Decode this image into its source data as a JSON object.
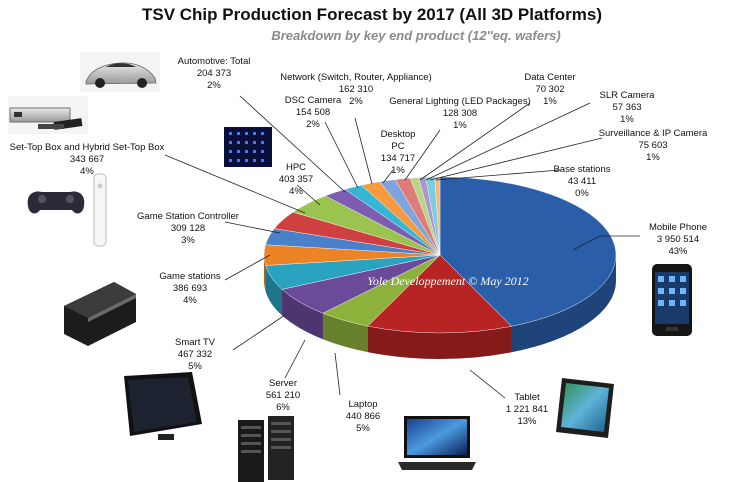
{
  "chart_data": {
    "type": "pie",
    "title": "TSV Chip Production  Forecast  by 2017 (All  3D Platforms)",
    "subtitle": "Breakdown by  key end product (12''eq. wafers)",
    "watermark": "Yole Developpement © May 2012",
    "slices": [
      {
        "name": "Mobile Phone",
        "value": "3 950 514",
        "pct": "43%",
        "v": 3950514,
        "color": "#2a5ea8"
      },
      {
        "name": "Tablet",
        "value": "1 221 841",
        "pct": "13%",
        "v": 1221841,
        "color": "#b82424"
      },
      {
        "name": "Laptop",
        "value": "440 866",
        "pct": "5%",
        "v": 440866,
        "color": "#8db23c"
      },
      {
        "name": "Server",
        "value": "561 210",
        "pct": "6%",
        "v": 561210,
        "color": "#6b4a9a"
      },
      {
        "name": "Smart TV",
        "value": "467 332",
        "pct": "5%",
        "v": 467332,
        "color": "#2aa3c1"
      },
      {
        "name": "Game stations",
        "value": "386 693",
        "pct": "4%",
        "v": 386693,
        "color": "#ec8425"
      },
      {
        "name": "Game Station Controller",
        "value": "309 128",
        "pct": "3%",
        "v": 309128,
        "color": "#4a7fc9"
      },
      {
        "name": "Set-Top Box and Hybrid Set-Top Box",
        "value": "343 667",
        "pct": "4%",
        "v": 343667,
        "color": "#cf4040"
      },
      {
        "name": "HPC",
        "value": "403 357",
        "pct": "4%",
        "v": 403357,
        "color": "#9ac34f"
      },
      {
        "name": "Automotive: Total",
        "value": "204 373",
        "pct": "2%",
        "v": 204373,
        "color": "#7d5cb3"
      },
      {
        "name": "DSC Camera",
        "value": "154 508",
        "pct": "2%",
        "v": 154508,
        "color": "#36b6d3"
      },
      {
        "name": "Network (Switch, Router, Appliance)",
        "value": "162 310",
        "pct": "2%",
        "v": 162310,
        "color": "#f59a3d"
      },
      {
        "name": "Desktop PC",
        "value": "134 717",
        "pct": "1%",
        "v": 134717,
        "color": "#7fa4dc"
      },
      {
        "name": "General Lighting (LED Packages)",
        "value": "128 308",
        "pct": "1%",
        "v": 128308,
        "color": "#e07b7b"
      },
      {
        "name": "Data Center",
        "value": "70 302",
        "pct": "1%",
        "v": 70302,
        "color": "#b7d585"
      },
      {
        "name": "SLR Camera",
        "value": "57 363",
        "pct": "1%",
        "v": 57363,
        "color": "#a996cd"
      },
      {
        "name": "Surveillance & IP Camera",
        "value": "75 603",
        "pct": "1%",
        "v": 75603,
        "color": "#7dcde0"
      },
      {
        "name": "Base stations",
        "value": "43 411",
        "pct": "0%",
        "v": 43411,
        "color": "#f7b87a"
      }
    ]
  },
  "icons": [
    "car-icon",
    "set-top-box-icon",
    "game-controller-icon",
    "hpc-chip-icon",
    "game-console-icon",
    "tv-icon",
    "server-icon",
    "laptop-icon",
    "tablet-icon",
    "mobile-phone-icon"
  ]
}
